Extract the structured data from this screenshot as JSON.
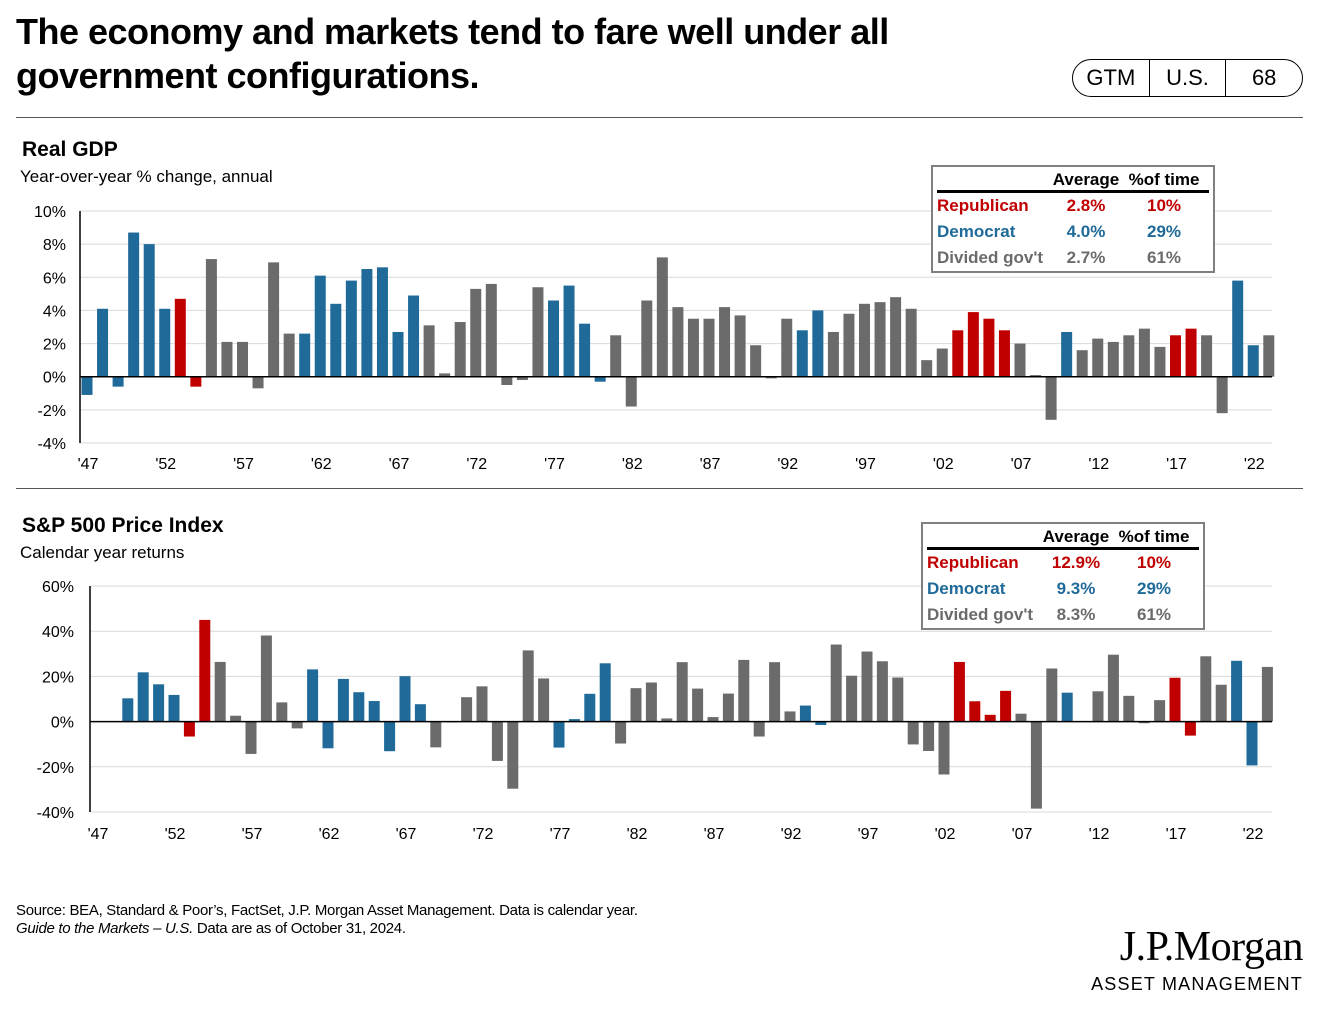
{
  "title": {
    "line1": "The economy and markets tend to fare well under all",
    "line2": "government configurations."
  },
  "badge": {
    "gtm": "GTM",
    "region": "U.S.",
    "page": "68"
  },
  "colors": {
    "Republican": "#C00000",
    "Democrat": "#1F6A99",
    "Divided": "#6B6B6B"
  },
  "legend_header": {
    "average": "Average",
    "pct_time": "%of time"
  },
  "chart_data": [
    {
      "type": "bar",
      "title": "Real GDP",
      "subtitle": "Year-over-year % change, annual",
      "ylim": [
        -4,
        10
      ],
      "yticks": [
        -4,
        -2,
        0,
        2,
        4,
        6,
        8,
        10
      ],
      "ytick_labels": [
        "-4%",
        "-2%",
        "0%",
        "2%",
        "4%",
        "6%",
        "8%",
        "10%"
      ],
      "xtick_labels": [
        "'47",
        "'52",
        "'57",
        "'62",
        "'67",
        "'72",
        "'77",
        "'82",
        "'87",
        "'92",
        "'97",
        "'02",
        "'07",
        "'12",
        "'17",
        "'22"
      ],
      "years": [
        1947,
        1948,
        1949,
        1950,
        1951,
        1952,
        1953,
        1954,
        1955,
        1956,
        1957,
        1958,
        1959,
        1960,
        1961,
        1962,
        1963,
        1964,
        1965,
        1966,
        1967,
        1968,
        1969,
        1970,
        1971,
        1972,
        1973,
        1974,
        1975,
        1976,
        1977,
        1978,
        1979,
        1980,
        1981,
        1982,
        1983,
        1984,
        1985,
        1986,
        1987,
        1988,
        1989,
        1990,
        1991,
        1992,
        1993,
        1994,
        1995,
        1996,
        1997,
        1998,
        1999,
        2000,
        2001,
        2002,
        2003,
        2004,
        2005,
        2006,
        2007,
        2008,
        2009,
        2010,
        2011,
        2012,
        2013,
        2014,
        2015,
        2016,
        2017,
        2018,
        2019,
        2020,
        2021,
        2022,
        2023
      ],
      "values": [
        -1.1,
        4.1,
        -0.6,
        8.7,
        8.0,
        4.1,
        4.7,
        -0.6,
        7.1,
        2.1,
        2.1,
        -0.7,
        6.9,
        2.6,
        2.6,
        6.1,
        4.4,
        5.8,
        6.5,
        6.6,
        2.7,
        4.9,
        3.1,
        0.2,
        3.3,
        5.3,
        5.6,
        -0.5,
        -0.2,
        5.4,
        4.6,
        5.5,
        3.2,
        -0.3,
        2.5,
        -1.8,
        4.6,
        7.2,
        4.2,
        3.5,
        3.5,
        4.2,
        3.7,
        1.9,
        -0.1,
        3.5,
        2.8,
        4.0,
        2.7,
        3.8,
        4.4,
        4.5,
        4.8,
        4.1,
        1.0,
        1.7,
        2.8,
        3.9,
        3.5,
        2.8,
        2.0,
        0.1,
        -2.6,
        2.7,
        1.6,
        2.3,
        2.1,
        2.5,
        2.9,
        1.8,
        2.5,
        2.9,
        2.5,
        -2.2,
        5.8,
        1.9,
        2.5
      ],
      "parties": [
        "D",
        "D",
        "D",
        "D",
        "D",
        "D",
        "R",
        "R",
        "G",
        "G",
        "G",
        "G",
        "G",
        "G",
        "D",
        "D",
        "D",
        "D",
        "D",
        "D",
        "D",
        "D",
        "G",
        "G",
        "G",
        "G",
        "G",
        "G",
        "G",
        "G",
        "D",
        "D",
        "D",
        "D",
        "G",
        "G",
        "G",
        "G",
        "G",
        "G",
        "G",
        "G",
        "G",
        "G",
        "G",
        "G",
        "D",
        "D",
        "G",
        "G",
        "G",
        "G",
        "G",
        "G",
        "G",
        "G",
        "R",
        "R",
        "R",
        "R",
        "G",
        "G",
        "G",
        "D",
        "G",
        "G",
        "G",
        "G",
        "G",
        "G",
        "R",
        "R",
        "G",
        "G",
        "D",
        "D",
        "G"
      ],
      "legend": {
        "rows": [
          {
            "party": "Republican",
            "average": "2.8%",
            "pct_time": "10%"
          },
          {
            "party": "Democrat",
            "average": "4.0%",
            "pct_time": "29%"
          },
          {
            "party": "Divided gov't",
            "average": "2.7%",
            "pct_time": "61%"
          }
        ]
      }
    },
    {
      "type": "bar",
      "title": "S&P 500 Price Index",
      "subtitle": "Calendar year returns",
      "ylim": [
        -40,
        60
      ],
      "yticks": [
        -40,
        -20,
        0,
        20,
        40,
        60
      ],
      "ytick_labels": [
        "-40%",
        "-20%",
        "0%",
        "20%",
        "40%",
        "60%"
      ],
      "xtick_labels": [
        "'47",
        "'52",
        "'57",
        "'62",
        "'67",
        "'72",
        "'77",
        "'82",
        "'87",
        "'92",
        "'97",
        "'02",
        "'07",
        "'12",
        "'17",
        "'22"
      ],
      "years": [
        1947,
        1948,
        1949,
        1950,
        1951,
        1952,
        1953,
        1954,
        1955,
        1956,
        1957,
        1958,
        1959,
        1960,
        1961,
        1962,
        1963,
        1964,
        1965,
        1966,
        1967,
        1968,
        1969,
        1970,
        1971,
        1972,
        1973,
        1974,
        1975,
        1976,
        1977,
        1978,
        1979,
        1980,
        1981,
        1982,
        1983,
        1984,
        1985,
        1986,
        1987,
        1988,
        1989,
        1990,
        1991,
        1992,
        1993,
        1994,
        1995,
        1996,
        1997,
        1998,
        1999,
        2000,
        2001,
        2002,
        2003,
        2004,
        2005,
        2006,
        2007,
        2008,
        2009,
        2010,
        2011,
        2012,
        2013,
        2014,
        2015,
        2016,
        2017,
        2018,
        2019,
        2020,
        2021,
        2022,
        2023
      ],
      "values": [
        0,
        0,
        10.3,
        21.8,
        16.5,
        11.8,
        -6.6,
        45.0,
        26.4,
        2.6,
        -14.3,
        38.1,
        8.5,
        -3.0,
        23.1,
        -11.8,
        18.9,
        13.0,
        9.1,
        -13.1,
        20.1,
        7.7,
        -11.4,
        0.1,
        10.8,
        15.6,
        -17.4,
        -29.7,
        31.5,
        19.1,
        -11.5,
        1.1,
        12.3,
        25.8,
        -9.7,
        14.8,
        17.3,
        1.4,
        26.3,
        14.6,
        2.0,
        12.4,
        27.3,
        -6.6,
        26.3,
        4.5,
        7.1,
        -1.5,
        34.1,
        20.3,
        31.0,
        26.7,
        19.5,
        -10.1,
        -13.0,
        -23.4,
        26.4,
        9.0,
        3.0,
        13.6,
        3.5,
        -38.5,
        23.5,
        12.8,
        0.0,
        13.4,
        29.6,
        11.4,
        -0.7,
        9.5,
        19.4,
        -6.2,
        28.9,
        16.3,
        26.9,
        -19.4,
        24.2
      ],
      "parties": [
        "D",
        "D",
        "D",
        "D",
        "D",
        "D",
        "R",
        "R",
        "G",
        "G",
        "G",
        "G",
        "G",
        "G",
        "D",
        "D",
        "D",
        "D",
        "D",
        "D",
        "D",
        "D",
        "G",
        "G",
        "G",
        "G",
        "G",
        "G",
        "G",
        "G",
        "D",
        "D",
        "D",
        "D",
        "G",
        "G",
        "G",
        "G",
        "G",
        "G",
        "G",
        "G",
        "G",
        "G",
        "G",
        "G",
        "D",
        "D",
        "G",
        "G",
        "G",
        "G",
        "G",
        "G",
        "G",
        "G",
        "R",
        "R",
        "R",
        "R",
        "G",
        "G",
        "G",
        "D",
        "G",
        "G",
        "G",
        "G",
        "G",
        "G",
        "R",
        "R",
        "G",
        "G",
        "D",
        "D",
        "G"
      ],
      "legend": {
        "rows": [
          {
            "party": "Republican",
            "average": "12.9%",
            "pct_time": "10%"
          },
          {
            "party": "Democrat",
            "average": "9.3%",
            "pct_time": "29%"
          },
          {
            "party": "Divided gov't",
            "average": "8.3%",
            "pct_time": "61%"
          }
        ]
      }
    }
  ],
  "source": {
    "line1": "Source: BEA, Standard & Poor’s, FactSet, J.P. Morgan Asset Management. Data is calendar year.",
    "line2_italic": "Guide to the Markets – U.S.",
    "line2_rest": " Data are as of October 31, 2024."
  },
  "logo": {
    "name": "J.P.Morgan",
    "sub": "ASSET MANAGEMENT"
  }
}
